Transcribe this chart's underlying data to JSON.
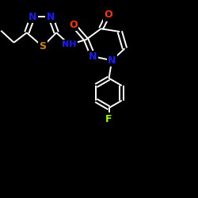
{
  "background": "#000000",
  "bond_color": "#ffffff",
  "bond_width": 1.4,
  "atom_colors": {
    "N": "#1a1aff",
    "S": "#cc8800",
    "O": "#ff3300",
    "F": "#99ff00",
    "C": "#ffffff",
    "H": "#ffffff"
  },
  "font_size": 9,
  "label_fontsize": 9
}
